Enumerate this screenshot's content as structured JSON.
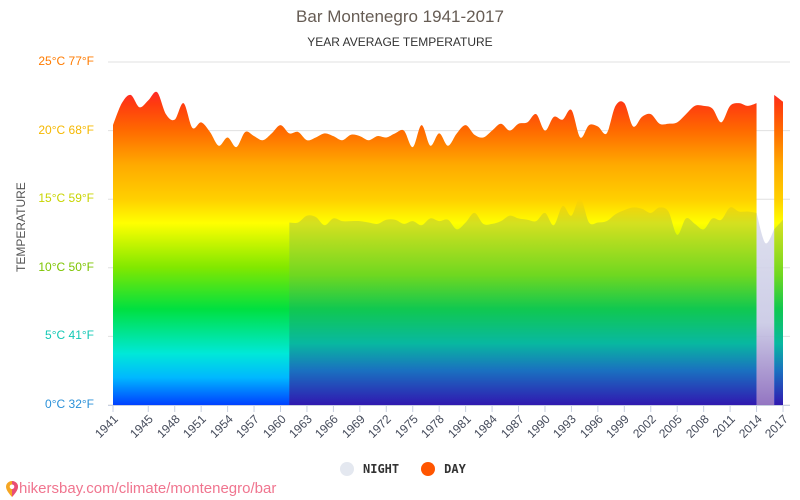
{
  "header": {
    "title": "Bar Montenegro 1941-2017",
    "subtitle": "YEAR AVERAGE TEMPERATURE"
  },
  "axis": {
    "ylabel": "TEMPERATURE",
    "yticks": [
      {
        "c": 25,
        "label": "25°C 77°F",
        "color": "#ff7b00"
      },
      {
        "c": 20,
        "label": "20°C 68°F",
        "color": "#f5b800"
      },
      {
        "c": 15,
        "label": "15°C 59°F",
        "color": "#c8d400"
      },
      {
        "c": 10,
        "label": "10°C 50°F",
        "color": "#7cc400"
      },
      {
        "c": 5,
        "label": "5°C 41°F",
        "color": "#12c8b4"
      },
      {
        "c": 0,
        "label": "0°C 32°F",
        "color": "#2a90d8"
      }
    ],
    "xticks": [
      "1941",
      "1945",
      "1948",
      "1951",
      "1954",
      "1957",
      "1960",
      "1963",
      "1966",
      "1969",
      "1972",
      "1975",
      "1978",
      "1981",
      "1984",
      "1987",
      "1990",
      "1993",
      "1996",
      "1999",
      "2002",
      "2005",
      "2008",
      "2011",
      "2014",
      "2017"
    ]
  },
  "legend": {
    "night_label": "NIGHT",
    "day_label": "DAY",
    "night_color": "#e4e8f0",
    "day_color": "#ff5500"
  },
  "source": {
    "text": "hikersbay.com/climate/montenegro/bar"
  },
  "chart_data": {
    "type": "area",
    "title": "Bar Montenegro 1941-2017",
    "subtitle": "YEAR AVERAGE TEMPERATURE",
    "xlabel": "",
    "ylabel": "TEMPERATURE",
    "ylim": [
      0,
      25
    ],
    "y_unit": "°C",
    "grid": true,
    "legend_position": "bottom",
    "series": [
      {
        "name": "DAY",
        "color": "#ff5500",
        "x": [
          1941,
          1942,
          1943,
          1944,
          1945,
          1946,
          1947,
          1948,
          1949,
          1950,
          1951,
          1952,
          1953,
          1954,
          1955,
          1956,
          1957,
          1958,
          1959,
          1960,
          1961,
          1962,
          1963,
          1964,
          1965,
          1966,
          1967,
          1968,
          1969,
          1970,
          1971,
          1972,
          1973,
          1974,
          1975,
          1976,
          1977,
          1978,
          1979,
          1980,
          1981,
          1982,
          1983,
          1984,
          1985,
          1986,
          1987,
          1988,
          1989,
          1990,
          1991,
          1992,
          1993,
          1994,
          1995,
          1996,
          1997,
          1998,
          1999,
          2000,
          2001,
          2002,
          2003,
          2004,
          2005,
          2006,
          2007,
          2008,
          2009,
          2010,
          2011,
          2012,
          2013,
          2014,
          2016,
          2017
        ],
        "values": [
          20.4,
          22.0,
          22.6,
          21.7,
          22.2,
          22.8,
          21.2,
          20.8,
          22.0,
          20.2,
          20.6,
          19.9,
          18.9,
          19.5,
          18.8,
          19.9,
          19.6,
          19.3,
          19.8,
          20.4,
          19.8,
          19.9,
          19.3,
          19.5,
          19.8,
          19.6,
          19.3,
          19.7,
          19.6,
          19.3,
          19.6,
          19.5,
          19.8,
          20.0,
          18.8,
          20.4,
          18.9,
          19.8,
          18.9,
          19.8,
          20.4,
          19.7,
          19.5,
          20.0,
          20.5,
          20.0,
          20.5,
          20.6,
          21.2,
          20.0,
          21.0,
          20.8,
          21.5,
          19.5,
          20.4,
          20.3,
          19.8,
          21.8,
          22.0,
          20.3,
          21.0,
          21.2,
          20.5,
          20.5,
          20.6,
          21.2,
          21.8,
          21.8,
          21.6,
          20.6,
          21.8,
          22.0,
          21.8,
          22.0,
          22.6,
          22.1
        ]
      },
      {
        "name": "NIGHT",
        "color": "#e4e8f0",
        "x": [
          1961,
          1962,
          1963,
          1964,
          1965,
          1966,
          1967,
          1968,
          1969,
          1970,
          1971,
          1972,
          1973,
          1974,
          1975,
          1976,
          1977,
          1978,
          1979,
          1980,
          1981,
          1982,
          1983,
          1984,
          1985,
          1986,
          1987,
          1988,
          1989,
          1990,
          1991,
          1992,
          1993,
          1994,
          1995,
          1996,
          1997,
          1998,
          1999,
          2000,
          2001,
          2002,
          2003,
          2004,
          2005,
          2006,
          2007,
          2008,
          2009,
          2010,
          2011,
          2012,
          2013,
          2014,
          2015,
          2016,
          2017
        ],
        "values": [
          13.3,
          13.3,
          13.8,
          13.7,
          13.1,
          13.6,
          13.4,
          13.4,
          13.4,
          13.3,
          13.2,
          13.5,
          13.5,
          13.2,
          13.4,
          13.1,
          13.6,
          13.4,
          13.5,
          12.8,
          13.3,
          14.0,
          13.2,
          13.2,
          13.4,
          13.8,
          13.6,
          13.5,
          13.4,
          14.0,
          13.1,
          14.5,
          13.8,
          15.1,
          13.3,
          13.3,
          13.4,
          13.9,
          14.2,
          14.4,
          14.3,
          14.0,
          14.4,
          14.1,
          12.4,
          13.6,
          13.2,
          12.8,
          13.6,
          13.5,
          14.4,
          14.1,
          14.1,
          14.0,
          11.8,
          12.8,
          13.5
        ]
      }
    ]
  }
}
